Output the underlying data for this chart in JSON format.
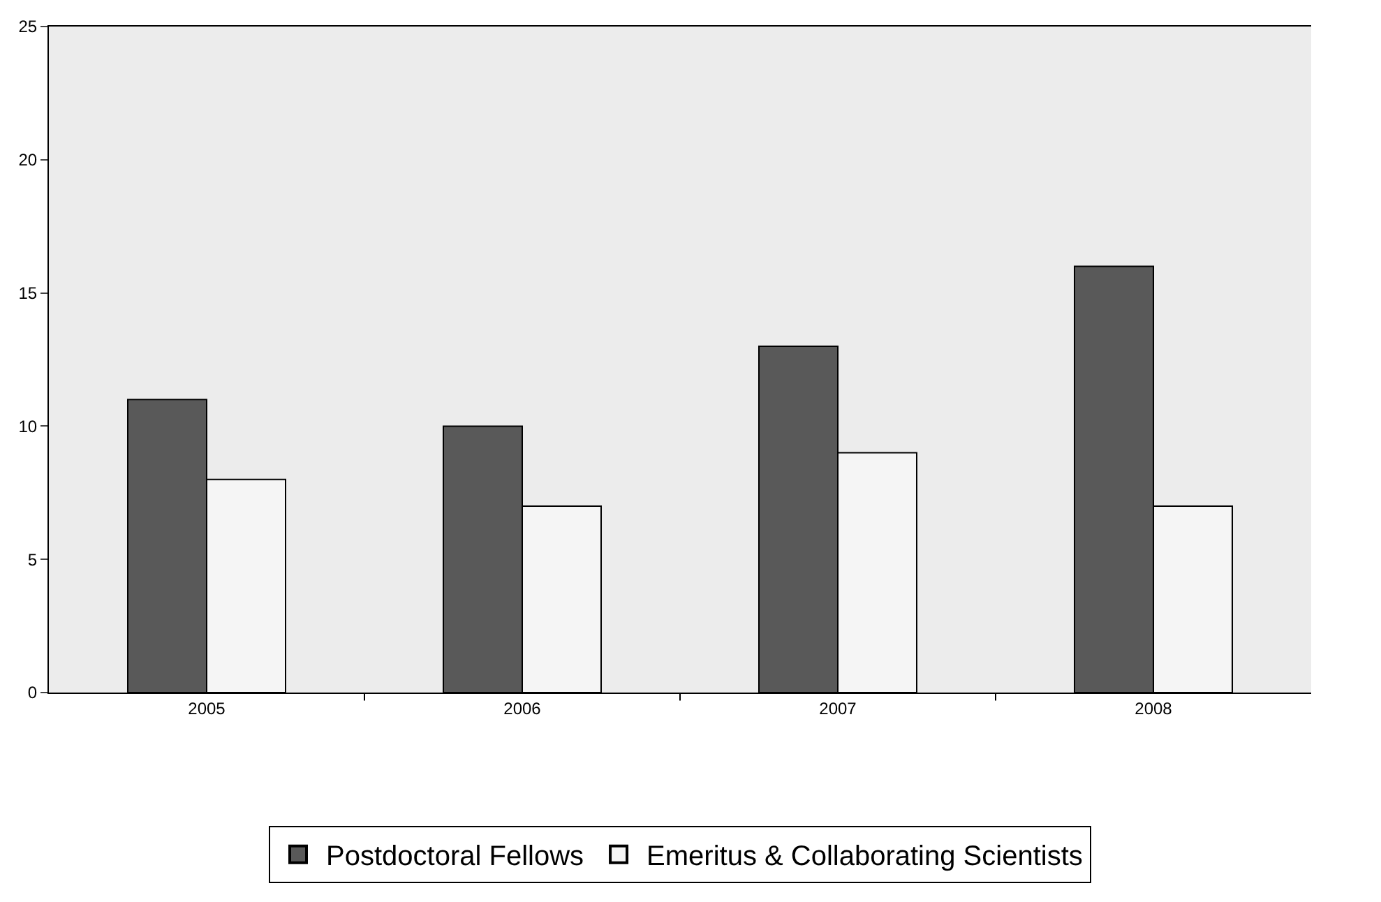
{
  "chart_data": {
    "type": "bar",
    "categories": [
      "2005",
      "2006",
      "2007",
      "2008"
    ],
    "series": [
      {
        "name": "Postdoctoral Fellows",
        "color": "#595959",
        "values": [
          11,
          10,
          13,
          16
        ]
      },
      {
        "name": "Emeritus & Collaborating Scientists",
        "color": "#f5f5f5",
        "values": [
          8,
          7,
          9,
          7
        ]
      }
    ],
    "ylim": [
      0,
      25
    ],
    "yticks": [
      0,
      5,
      10,
      15,
      20,
      25
    ],
    "grid": false,
    "legend": "bottom"
  }
}
